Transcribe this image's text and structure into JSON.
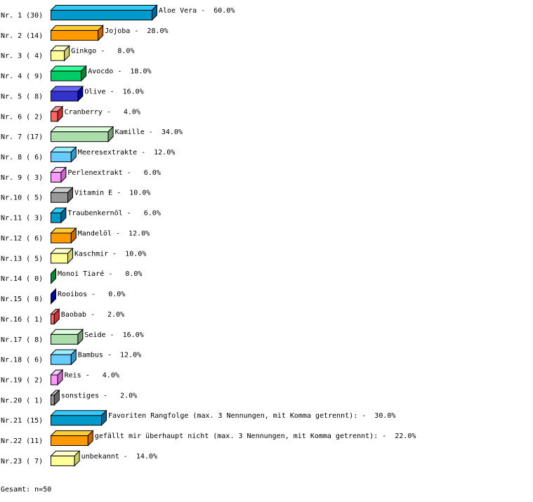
{
  "chart_data": {
    "type": "bar",
    "orientation": "horizontal",
    "style": "3d",
    "unit": "%",
    "xlim": [
      0,
      60
    ],
    "grid": false,
    "items": [
      {
        "rank": "Nr. 1",
        "count": 30,
        "name": "Aloe Vera",
        "percent": 60.0
      },
      {
        "rank": "Nr. 2",
        "count": 14,
        "name": "Jojoba",
        "percent": 28.0
      },
      {
        "rank": "Nr. 3",
        "count": 4,
        "name": "Ginkgo",
        "percent": 8.0
      },
      {
        "rank": "Nr. 4",
        "count": 9,
        "name": "Avocdo",
        "percent": 18.0
      },
      {
        "rank": "Nr. 5",
        "count": 8,
        "name": "Olive",
        "percent": 16.0
      },
      {
        "rank": "Nr. 6",
        "count": 2,
        "name": "Cranberry",
        "percent": 4.0
      },
      {
        "rank": "Nr. 7",
        "count": 17,
        "name": "Kamille",
        "percent": 34.0
      },
      {
        "rank": "Nr. 8",
        "count": 6,
        "name": "Meeresextrakte",
        "percent": 12.0
      },
      {
        "rank": "Nr. 9",
        "count": 3,
        "name": "Perlenextrakt",
        "percent": 6.0
      },
      {
        "rank": "Nr.10",
        "count": 5,
        "name": "Vitamin E",
        "percent": 10.0
      },
      {
        "rank": "Nr.11",
        "count": 3,
        "name": "Traubenkernöl",
        "percent": 6.0
      },
      {
        "rank": "Nr.12",
        "count": 6,
        "name": "Mandelöl",
        "percent": 12.0
      },
      {
        "rank": "Nr.13",
        "count": 5,
        "name": "Kaschmir",
        "percent": 10.0
      },
      {
        "rank": "Nr.14",
        "count": 0,
        "name": "Monoi Tiaré",
        "percent": 0.0
      },
      {
        "rank": "Nr.15",
        "count": 0,
        "name": "Rooibos",
        "percent": 0.0
      },
      {
        "rank": "Nr.16",
        "count": 1,
        "name": "Baobab",
        "percent": 2.0
      },
      {
        "rank": "Nr.17",
        "count": 8,
        "name": "Seide",
        "percent": 16.0
      },
      {
        "rank": "Nr.18",
        "count": 6,
        "name": "Bambus",
        "percent": 12.0
      },
      {
        "rank": "Nr.19",
        "count": 2,
        "name": "Reis",
        "percent": 4.0
      },
      {
        "rank": "Nr.20",
        "count": 1,
        "name": "sonstiges",
        "percent": 2.0
      },
      {
        "rank": "Nr.21",
        "count": 15,
        "name": "Favoriten Rangfolge (max. 3 Nennungen, mit Komma getrennt):",
        "percent": 30.0
      },
      {
        "rank": "Nr.22",
        "count": 11,
        "name": "gefällt mir überhaupt nicht (max. 3 Nennungen, mit Komma getrennt):",
        "percent": 22.0
      },
      {
        "rank": "Nr.23",
        "count": 7,
        "name": "unbekannt",
        "percent": 14.0
      }
    ],
    "palette": [
      {
        "front": "#0099cc",
        "top": "#33ccff",
        "side": "#006699"
      },
      {
        "front": "#ff9900",
        "top": "#ffcc33",
        "side": "#cc6600"
      },
      {
        "front": "#ffff99",
        "top": "#ffffcc",
        "side": "#cccc66"
      },
      {
        "front": "#00cc66",
        "top": "#33ff99",
        "side": "#008833"
      },
      {
        "front": "#3333cc",
        "top": "#6666ff",
        "side": "#000099"
      },
      {
        "front": "#ff6666",
        "top": "#ff9999",
        "side": "#cc3333"
      },
      {
        "front": "#aaddaa",
        "top": "#ddffdd",
        "side": "#779977"
      },
      {
        "front": "#66ccff",
        "top": "#99eeff",
        "side": "#3399cc"
      },
      {
        "front": "#ff99ff",
        "top": "#ffccff",
        "side": "#cc66cc"
      },
      {
        "front": "#999999",
        "top": "#cccccc",
        "side": "#666666"
      }
    ]
  },
  "footer": {
    "total": "Gesamt: n=50"
  }
}
